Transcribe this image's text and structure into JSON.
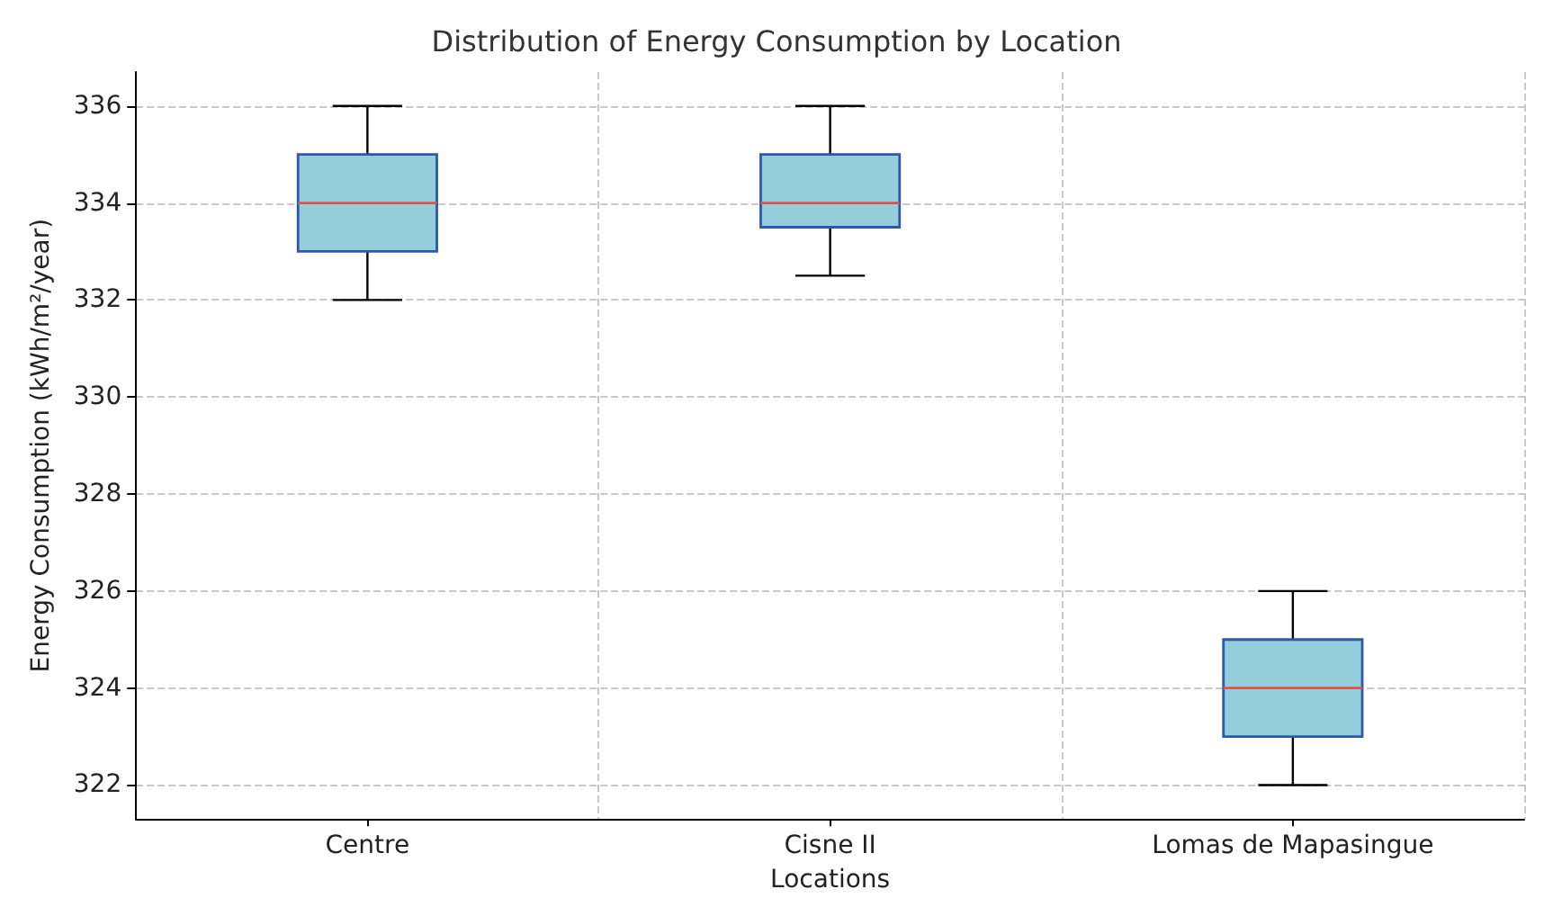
{
  "chart_data": {
    "type": "box",
    "title": "Distribution of Energy Consumption by Location",
    "xlabel": "Locations",
    "ylabel": "Energy Consumption (kWh/m²/year)",
    "categories": [
      "Centre",
      "Cisne II",
      "Lomas de Mapasingue"
    ],
    "series": [
      {
        "color": "#96cddb",
        "boxes": [
          {
            "low": 332,
            "q1": 333,
            "median": 334,
            "q3": 335,
            "high": 336
          },
          {
            "low": 332.5,
            "q1": 333.5,
            "median": 334,
            "q3": 335,
            "high": 336
          },
          {
            "low": 322,
            "q1": 323,
            "median": 324,
            "q3": 325,
            "high": 326
          }
        ]
      }
    ],
    "ylim": [
      321.3,
      336.7
    ],
    "yticks": [
      322,
      324,
      326,
      328,
      330,
      332,
      334,
      336
    ],
    "grid": true
  }
}
